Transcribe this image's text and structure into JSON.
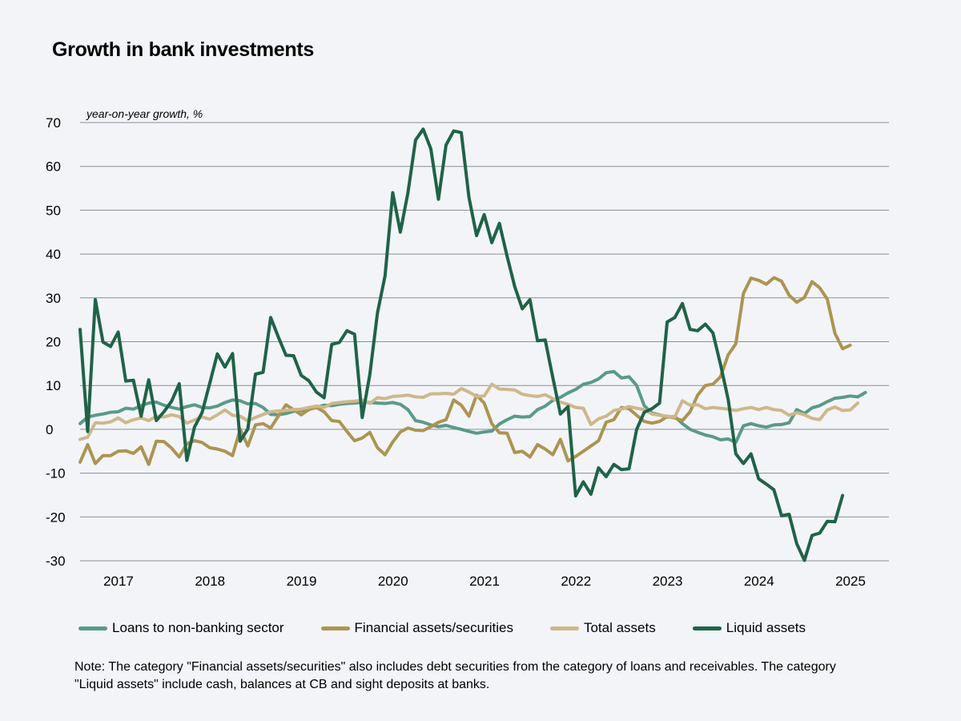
{
  "chart_data": {
    "type": "line",
    "title": "Growth in bank investments",
    "ylabel": "year-on-year growth, %",
    "xlabel": "",
    "ylim": [
      -30,
      70
    ],
    "yticks": [
      70,
      60,
      50,
      40,
      30,
      20,
      10,
      0,
      -10,
      -20,
      -30
    ],
    "xlim": [
      2016.58,
      2025.42
    ],
    "xticks": [
      2017,
      2018,
      2019,
      2020,
      2021,
      2022,
      2023,
      2024,
      2025
    ],
    "grid": true,
    "legend_position": "bottom",
    "series": [
      {
        "name": "Loans to non-banking sector",
        "color": "#5a9a86",
        "x_start": 2016.58,
        "x_step": 0.08333,
        "values": [
          1.3,
          2.8,
          3.2,
          3.5,
          3.9,
          4.0,
          4.8,
          4.6,
          5.4,
          6.0,
          6.2,
          5.5,
          5.0,
          4.6,
          5.2,
          5.6,
          5.0,
          4.9,
          5.3,
          6.1,
          6.7,
          6.5,
          5.8,
          5.9,
          5.0,
          3.4,
          3.3,
          3.6,
          4.1,
          4.3,
          4.6,
          5.0,
          5.5,
          5.4,
          5.7,
          5.9,
          6.0,
          6.2,
          6.1,
          6.0,
          5.9,
          6.1,
          5.7,
          4.5,
          2.0,
          1.6,
          1.0,
          0.6,
          0.9,
          0.4,
          0.0,
          -0.5,
          -0.9,
          -0.6,
          -0.4,
          1.2,
          2.2,
          3.0,
          2.8,
          2.9,
          4.5,
          5.3,
          6.6,
          7.3,
          8.3,
          9.1,
          10.3,
          10.7,
          11.5,
          12.9,
          13.2,
          11.7,
          12.0,
          10.0,
          5.4,
          3.7,
          3.3,
          2.8,
          2.9,
          1.3,
          0.0,
          -0.7,
          -1.3,
          -1.7,
          -2.4,
          -2.2,
          -3.0,
          0.8,
          1.3,
          0.8,
          0.5,
          1.0,
          1.1,
          1.5,
          4.5,
          3.6,
          4.9,
          5.4,
          6.3,
          7.1,
          7.3,
          7.6,
          7.4,
          8.4
        ]
      },
      {
        "name": "Financial assets/securities",
        "color": "#ac9451",
        "x_start": 2016.58,
        "x_step": 0.08333,
        "values": [
          -7.5,
          -3.5,
          -7.8,
          -6.0,
          -6.0,
          -5.0,
          -4.9,
          -5.5,
          -4.0,
          -8.0,
          -2.7,
          -2.8,
          -4.3,
          -6.3,
          -3.3,
          -2.6,
          -3.0,
          -4.2,
          -4.5,
          -5.0,
          -6.0,
          0.0,
          -3.8,
          1.0,
          1.3,
          0.3,
          3.0,
          5.6,
          4.5,
          3.3,
          4.5,
          5.0,
          4.0,
          2.0,
          1.8,
          -0.5,
          -2.6,
          -2.0,
          -0.7,
          -4.2,
          -5.8,
          -2.9,
          -0.6,
          0.3,
          -0.2,
          -0.3,
          0.6,
          1.6,
          2.2,
          6.7,
          5.5,
          3.0,
          7.8,
          6.0,
          1.3,
          -0.8,
          -0.9,
          -5.3,
          -5.0,
          -6.3,
          -3.5,
          -4.5,
          -5.8,
          -2.3,
          -7.2,
          -6.2,
          -5.0,
          -3.8,
          -2.6,
          1.6,
          2.2,
          5.0,
          4.7,
          3.2,
          1.8,
          1.4,
          1.8,
          2.9,
          2.6,
          2.0,
          4.0,
          7.8,
          10.0,
          10.3,
          12.0,
          17.0,
          19.5,
          31.0,
          34.5,
          34.0,
          33.1,
          34.6,
          33.8,
          30.6,
          29.0,
          30.1,
          33.7,
          32.3,
          29.7,
          21.9,
          18.4,
          19.2
        ]
      },
      {
        "name": "Total assets",
        "color": "#cdb88a",
        "x_start": 2016.58,
        "x_step": 0.08333,
        "values": [
          -2.3,
          -1.8,
          1.5,
          1.4,
          1.7,
          2.6,
          1.5,
          2.2,
          2.6,
          2.0,
          3.0,
          2.8,
          3.3,
          2.9,
          1.4,
          2.1,
          2.8,
          2.3,
          3.3,
          4.4,
          3.2,
          3.0,
          1.9,
          2.7,
          3.4,
          4.0,
          4.2,
          4.3,
          4.5,
          4.6,
          5.0,
          5.3,
          5.0,
          5.9,
          6.1,
          6.3,
          6.4,
          6.7,
          5.9,
          7.2,
          7.0,
          7.5,
          7.6,
          7.8,
          7.4,
          7.3,
          8.1,
          8.1,
          8.2,
          8.0,
          9.3,
          8.5,
          7.5,
          7.6,
          10.3,
          9.2,
          9.1,
          9.0,
          8.0,
          7.7,
          7.5,
          7.9,
          7.0,
          6.2,
          5.7,
          5.0,
          4.8,
          1.1,
          2.4,
          3.0,
          4.3,
          4.6,
          5.2,
          4.8,
          4.5,
          3.5,
          3.2,
          3.0,
          2.8,
          6.5,
          5.5,
          5.6,
          4.7,
          5.0,
          4.8,
          4.6,
          4.3,
          4.7,
          5.0,
          4.5,
          5.0,
          4.5,
          4.3,
          3.2,
          3.8,
          3.3,
          2.5,
          2.2,
          4.4,
          5.1,
          4.3,
          4.4,
          6.0
        ]
      },
      {
        "name": "Liquid assets",
        "color": "#1f6347",
        "x_start": 2016.58,
        "x_step": 0.08333,
        "values": [
          22.8,
          -0.5,
          29.6,
          19.9,
          18.9,
          22.2,
          11.0,
          11.2,
          3.0,
          11.3,
          2.0,
          4.0,
          6.4,
          10.4,
          -7.1,
          0.5,
          3.8,
          10.5,
          17.2,
          14.2,
          17.3,
          -2.7,
          0.1,
          12.6,
          13.0,
          25.5,
          21.1,
          16.9,
          16.8,
          12.3,
          11.1,
          8.5,
          7.2,
          19.4,
          19.8,
          22.5,
          21.7,
          2.7,
          12.5,
          26.5,
          35.0,
          54.0,
          45.0,
          54.0,
          66.0,
          68.5,
          64.0,
          52.5,
          64.9,
          68.1,
          67.7,
          52.9,
          44.2,
          49.0,
          42.6,
          47.0,
          39.5,
          32.6,
          27.5,
          29.6,
          20.2,
          20.4,
          11.8,
          3.5,
          5.2,
          -15.2,
          -12.0,
          -14.8,
          -8.8,
          -10.8,
          -8.0,
          -9.2,
          -9.0,
          0.0,
          3.9,
          4.7,
          6.0,
          24.5,
          25.5,
          28.7,
          22.8,
          22.5,
          24.0,
          22.0,
          14.8,
          6.8,
          -5.6,
          -7.8,
          -5.6,
          -11.3,
          -12.5,
          -13.8,
          -19.7,
          -19.4,
          -26.1,
          -29.9,
          -24.2,
          -23.7,
          -21.0,
          -21.1,
          -15.1
        ]
      }
    ]
  },
  "note": "Note: The category \"Financial assets/securities\" also includes debt securities from the category of loans and receivables. The category \"Liquid assets\" include cash, balances at CB and sight deposits at banks."
}
